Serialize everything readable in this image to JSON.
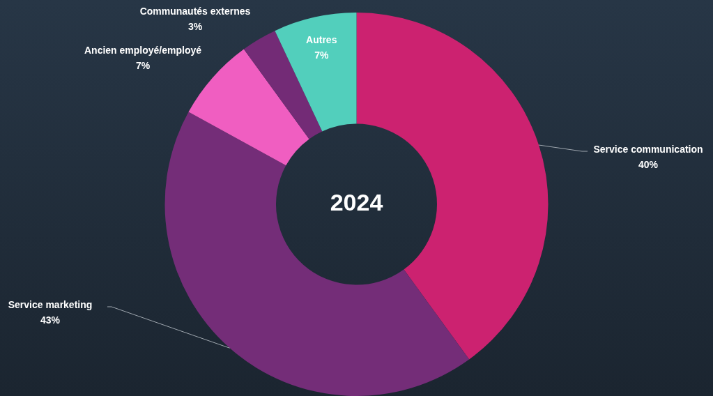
{
  "chart_data": {
    "type": "donut",
    "title": "2024",
    "categories": [
      "Service communication",
      "Service marketing",
      "Ancien employé/employé",
      "Communautés externes",
      "Autres"
    ],
    "values": [
      40,
      43,
      7,
      3,
      7
    ],
    "value_labels": [
      "40%",
      "43%",
      "7%",
      "3%",
      "7%"
    ],
    "colors": [
      "#cc2270",
      "#742d78",
      "#f05ec1",
      "#732b76",
      "#52cfbc"
    ],
    "legend": false
  }
}
